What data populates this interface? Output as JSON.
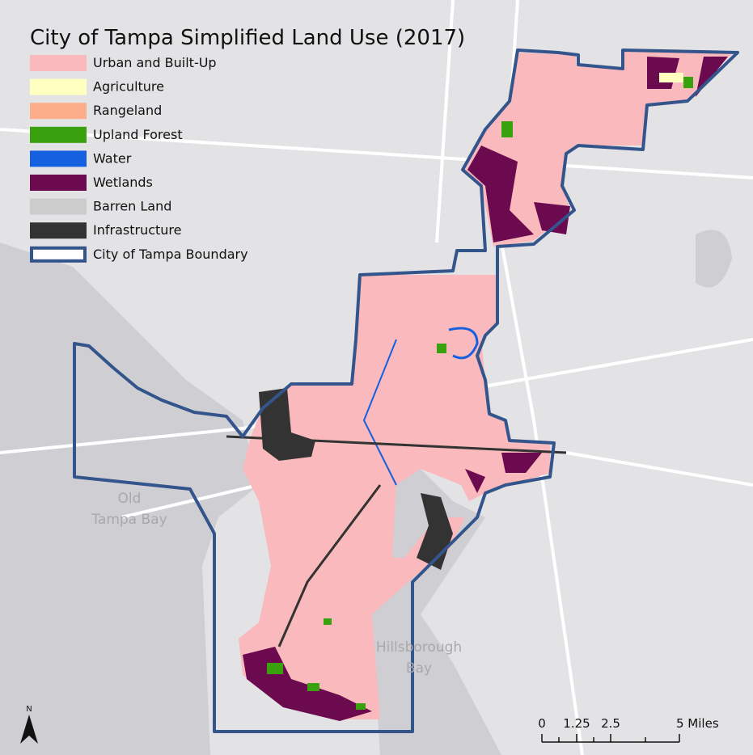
{
  "title": "City of Tampa Simplified Land Use (2017)",
  "legend": [
    {
      "label": "Urban and Built-Up",
      "color": "#f9b9bd"
    },
    {
      "label": "Agriculture",
      "color": "#ffffc0"
    },
    {
      "label": "Rangeland",
      "color": "#fcad8a"
    },
    {
      "label": "Upland Forest",
      "color": "#3aa10e"
    },
    {
      "label": "Water",
      "color": "#1560e0"
    },
    {
      "label": "Wetlands",
      "color": "#6b0a4e"
    },
    {
      "label": "Barren Land",
      "color": "#cccccc"
    },
    {
      "label": "Infrastructure",
      "color": "#333333"
    }
  ],
  "boundary": {
    "label": "City of Tampa Boundary",
    "color": "#34558c"
  },
  "place_labels": {
    "old_tampa_bay": [
      "Old",
      "Tampa Bay"
    ],
    "hillsborough_bay": [
      "Hillsborough",
      "Bay"
    ]
  },
  "scale_bar": [
    "0",
    "1.25",
    "2.5",
    "5 Miles"
  ],
  "north": "N"
}
